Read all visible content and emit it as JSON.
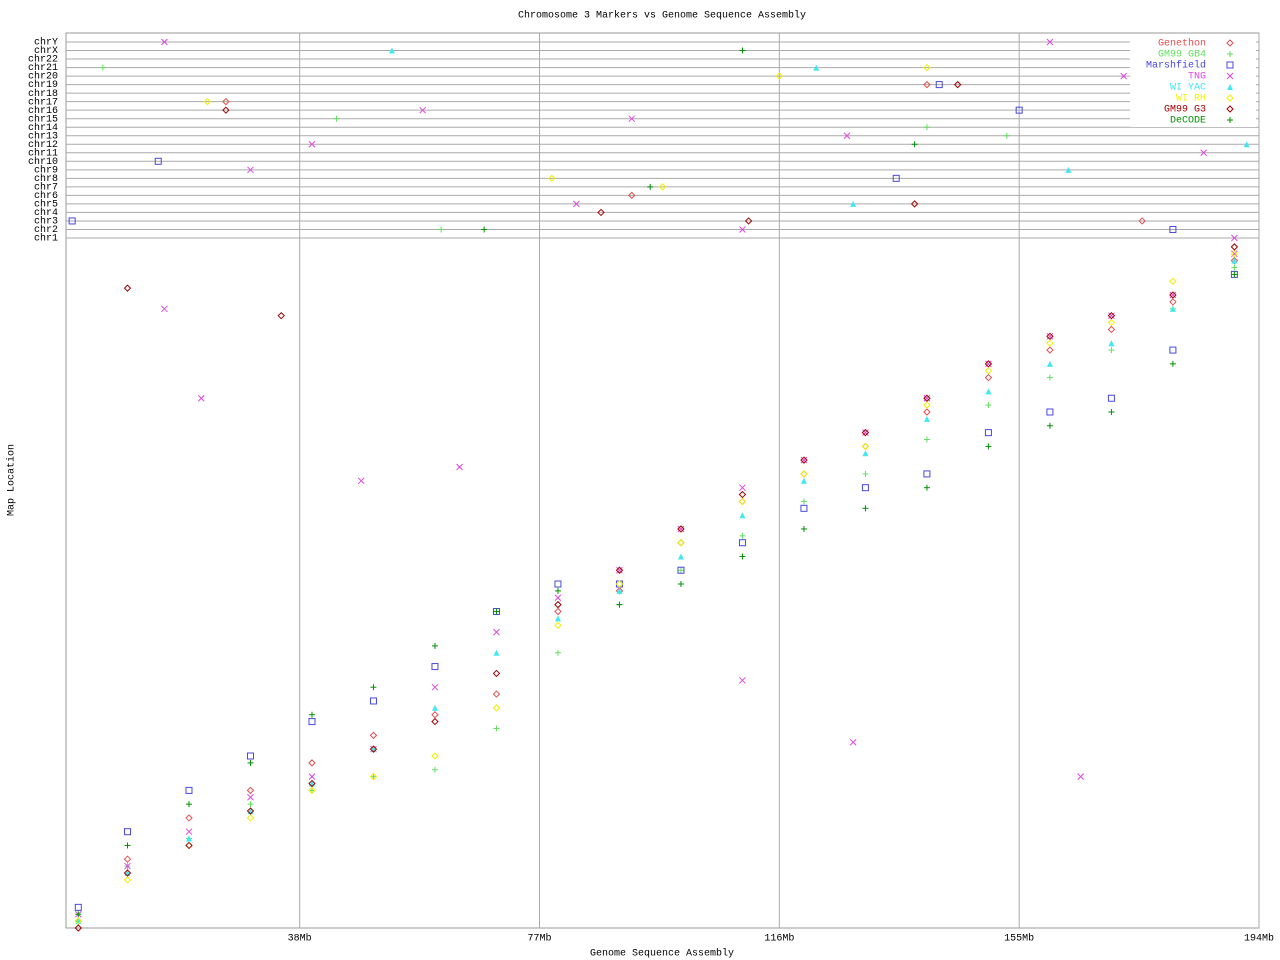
{
  "chart_data": [
    {
      "type": "strip",
      "title": "Chromosome 3 Markers vs Genome Sequence Assembly",
      "categories": [
        "chr1",
        "chr2",
        "chr3",
        "chr4",
        "chr5",
        "chr6",
        "chr7",
        "chr8",
        "chr9",
        "chr10",
        "chr11",
        "chr12",
        "chr13",
        "chr14",
        "chr15",
        "chr16",
        "chr17",
        "chr18",
        "chr19",
        "chr20",
        "chr21",
        "chr22",
        "chrX",
        "chrY"
      ],
      "legend": "top-right",
      "series": [
        {
          "name": "Genethon",
          "color": "#e05050",
          "marker": "diamond",
          "x": [
            26,
            92,
            140,
            175
          ],
          "values": [
            "chr17",
            "chr6",
            "chr19",
            "chr3"
          ]
        },
        {
          "name": "GM99 GB4",
          "color": "#60e060",
          "marker": "plus",
          "x": [
            6,
            44,
            61,
            140,
            153
          ],
          "values": [
            "chr21",
            "chr15",
            "chr2",
            "chr14",
            "chr13"
          ]
        },
        {
          "name": "Marshfield",
          "color": "#4848e0",
          "marker": "square",
          "x": [
            1,
            15,
            135,
            142,
            155,
            180
          ],
          "values": [
            "chr3",
            "chr10",
            "chr8",
            "chr19",
            "chr16",
            "chr2"
          ]
        },
        {
          "name": "TNG",
          "color": "#e048e0",
          "marker": "x",
          "x": [
            16,
            30,
            40,
            58,
            83,
            92,
            110,
            127,
            160,
            172,
            185,
            190
          ],
          "values": [
            "chrY",
            "chr9",
            "chr12",
            "chr16",
            "chr5",
            "chr15",
            "chr2",
            "chr13",
            "chrY",
            "chr20",
            "chr11",
            "chr1"
          ]
        },
        {
          "name": "WI YAC",
          "color": "#40e8f0",
          "marker": "triangle",
          "x": [
            53,
            122,
            128,
            163,
            192
          ],
          "values": [
            "chrX",
            "chr21",
            "chr5",
            "chr9",
            "chr12"
          ]
        },
        {
          "name": "WI RH",
          "color": "#f0f000",
          "marker": "diamond",
          "x": [
            23,
            79,
            97,
            116,
            140
          ],
          "values": [
            "chr17",
            "chr8",
            "chr7",
            "chr20",
            "chr21"
          ]
        },
        {
          "name": "GM99 G3",
          "color": "#a00000",
          "marker": "diamond",
          "x": [
            26,
            87,
            111,
            138,
            145
          ],
          "values": [
            "chr16",
            "chr4",
            "chr3",
            "chr5",
            "chr19"
          ]
        },
        {
          "name": "DeCODE",
          "color": "#009000",
          "marker": "plus",
          "x": [
            68,
            95,
            110,
            138,
            179
          ],
          "values": [
            "chr2",
            "chr7",
            "chrX",
            "chr12",
            "chr15"
          ]
        }
      ]
    },
    {
      "type": "scatter",
      "x_label": "Genome Sequence Assembly",
      "y_label": "Map Location",
      "xlim": [
        0,
        194
      ],
      "ylim": [
        0,
        100
      ],
      "xticks": [
        {
          "value": 38,
          "label": "38Mb"
        },
        {
          "value": 77,
          "label": "77Mb"
        },
        {
          "value": 116,
          "label": "116Mb"
        },
        {
          "value": 155,
          "label": "155Mb"
        },
        {
          "value": 194,
          "label": "194Mb"
        }
      ],
      "grid": true,
      "series": [
        {
          "name": "Genethon",
          "color": "#e05050",
          "marker": "diamond",
          "x": [
            2,
            10,
            20,
            30,
            40,
            50,
            60,
            70,
            80,
            90,
            100,
            110,
            120,
            130,
            140,
            150,
            160,
            170,
            180,
            190
          ],
          "values": [
            1,
            10,
            16,
            20,
            24,
            28,
            31,
            34,
            46,
            49,
            56,
            62,
            66,
            70,
            75,
            80,
            84,
            87,
            91,
            97
          ]
        },
        {
          "name": "GM99 GB4",
          "color": "#60e060",
          "marker": "plus",
          "x": [
            2,
            10,
            20,
            30,
            40,
            50,
            60,
            70,
            80,
            90,
            100,
            110,
            120,
            130,
            140,
            150,
            160,
            170,
            180,
            190
          ],
          "values": [
            1,
            9,
            13,
            18,
            20,
            22,
            23,
            29,
            40,
            47,
            52,
            57,
            62,
            66,
            71,
            76,
            80,
            84,
            90,
            96
          ]
        },
        {
          "name": "Marshfield",
          "color": "#4848e0",
          "marker": "square",
          "x": [
            2,
            10,
            20,
            30,
            40,
            50,
            60,
            70,
            80,
            90,
            100,
            110,
            120,
            130,
            140,
            150,
            160,
            170,
            180,
            190
          ],
          "values": [
            3,
            14,
            20,
            25,
            30,
            33,
            38,
            46,
            50,
            50,
            52,
            56,
            61,
            64,
            66,
            72,
            75,
            77,
            84,
            95
          ]
        },
        {
          "name": "TNG",
          "color": "#e048e0",
          "marker": "x",
          "x": [
            2,
            10,
            20,
            30,
            40,
            50,
            60,
            70,
            80,
            90,
            100,
            110,
            120,
            130,
            140,
            150,
            160,
            170,
            180,
            190,
            16,
            22,
            48,
            64,
            110,
            128,
            165
          ],
          "values": [
            2,
            9,
            14,
            19,
            22,
            26,
            35,
            43,
            48,
            52,
            58,
            64,
            68,
            72,
            77,
            82,
            86,
            89,
            92,
            98,
            90,
            77,
            65,
            67,
            36,
            27,
            22
          ]
        },
        {
          "name": "WI YAC",
          "color": "#40e8f0",
          "marker": "triangle",
          "x": [
            2,
            10,
            20,
            30,
            40,
            50,
            60,
            70,
            80,
            90,
            100,
            110,
            120,
            130,
            140,
            150,
            160,
            170,
            180,
            190
          ],
          "values": [
            1,
            8,
            13,
            17,
            21,
            26,
            32,
            40,
            45,
            49,
            54,
            60,
            65,
            69,
            74,
            78,
            82,
            85,
            90,
            97
          ]
        },
        {
          "name": "WI RH",
          "color": "#f0f000",
          "marker": "diamond",
          "x": [
            2,
            10,
            20,
            30,
            40,
            50,
            60,
            70,
            80,
            90,
            100,
            110,
            120,
            130,
            140,
            150,
            160,
            170,
            180,
            190
          ],
          "values": [
            1,
            7,
            12,
            16,
            20,
            22,
            25,
            32,
            44,
            50,
            56,
            62,
            66,
            70,
            76,
            81,
            85,
            88,
            94,
            98
          ]
        },
        {
          "name": "GM99 G3",
          "color": "#a00000",
          "marker": "diamond",
          "x": [
            2,
            10,
            20,
            30,
            40,
            50,
            60,
            70,
            80,
            90,
            100,
            110,
            120,
            130,
            140,
            150,
            160,
            170,
            180,
            190,
            10,
            35
          ],
          "values": [
            0,
            8,
            12,
            17,
            21,
            26,
            30,
            37,
            47,
            52,
            58,
            63,
            68,
            72,
            77,
            82,
            86,
            89,
            92,
            99,
            93,
            89
          ]
        },
        {
          "name": "DeCODE",
          "color": "#009000",
          "marker": "plus",
          "x": [
            2,
            10,
            20,
            30,
            40,
            50,
            60,
            70,
            80,
            90,
            100,
            110,
            120,
            130,
            140,
            150,
            160,
            170,
            180,
            190
          ],
          "values": [
            2,
            12,
            18,
            24,
            31,
            35,
            41,
            46,
            49,
            47,
            50,
            54,
            58,
            61,
            64,
            70,
            73,
            75,
            82,
            95
          ]
        }
      ]
    }
  ]
}
